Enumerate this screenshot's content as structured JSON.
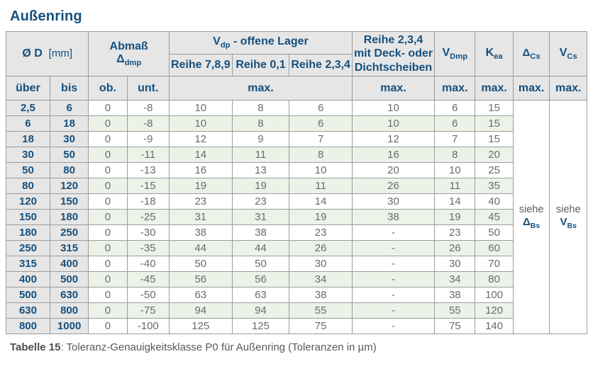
{
  "page": {
    "title": "Außenring",
    "caption": {
      "bold": "Tabelle 15",
      "rest": ": Toleranz-Genauigkeitsklasse P0 für Außenring (Toleranzen in µm)"
    }
  },
  "colors": {
    "accent_blue": "#15507E",
    "header_bg": "#e6e6e6",
    "stripe_green": "#ebf3e9",
    "border_gray": "#9c9c9c",
    "value_text": "#6b6b6b"
  },
  "table": {
    "header": {
      "diameter": {
        "main": "Ø D",
        "unit": "[mm]"
      },
      "abmass": {
        "line1": "Abmaß",
        "delta": "Δ",
        "delta_sub": "dmp"
      },
      "vdp_group": {
        "main": "V",
        "sub": "dp",
        "rest": "  -  offene Lager"
      },
      "reihe_cols": [
        "Reihe 7,8,9",
        "Reihe 0,1",
        "Reihe 2,3,4"
      ],
      "sealed": {
        "line1": "Reihe 2,3,4",
        "line2": "mit Deck- oder",
        "line3": "Dichtscheiben"
      },
      "vdmp": {
        "main": "V",
        "sub": "Dmp"
      },
      "kea": {
        "main": "K",
        "sub": "ea"
      },
      "dcs": {
        "main": "Δ",
        "sub": "Cs"
      },
      "vcs": {
        "main": "V",
        "sub": "Cs"
      },
      "sub_row": {
        "ueber": "über",
        "bis": "bis",
        "ob": "ob.",
        "unt": "unt.",
        "max": "max."
      }
    },
    "see_delta": {
      "word": "siehe",
      "main": "Δ",
      "sub": "Bs"
    },
    "see_v": {
      "word": "siehe",
      "main": "V",
      "sub": "Bs"
    },
    "rows": [
      {
        "ueber": "2,5",
        "bis": "6",
        "values": [
          "0",
          "-8",
          "10",
          "8",
          "6",
          "10",
          "6",
          "15"
        ]
      },
      {
        "ueber": "6",
        "bis": "18",
        "values": [
          "0",
          "-8",
          "10",
          "8",
          "6",
          "10",
          "6",
          "15"
        ]
      },
      {
        "ueber": "18",
        "bis": "30",
        "values": [
          "0",
          "-9",
          "12",
          "9",
          "7",
          "12",
          "7",
          "15"
        ]
      },
      {
        "ueber": "30",
        "bis": "50",
        "values": [
          "0",
          "-11",
          "14",
          "11",
          "8",
          "16",
          "8",
          "20"
        ]
      },
      {
        "ueber": "50",
        "bis": "80",
        "values": [
          "0",
          "-13",
          "16",
          "13",
          "10",
          "20",
          "10",
          "25"
        ]
      },
      {
        "ueber": "80",
        "bis": "120",
        "values": [
          "0",
          "-15",
          "19",
          "19",
          "11",
          "26",
          "11",
          "35"
        ]
      },
      {
        "ueber": "120",
        "bis": "150",
        "values": [
          "0",
          "-18",
          "23",
          "23",
          "14",
          "30",
          "14",
          "40"
        ]
      },
      {
        "ueber": "150",
        "bis": "180",
        "values": [
          "0",
          "-25",
          "31",
          "31",
          "19",
          "38",
          "19",
          "45"
        ]
      },
      {
        "ueber": "180",
        "bis": "250",
        "values": [
          "0",
          "-30",
          "38",
          "38",
          "23",
          "-",
          "23",
          "50"
        ]
      },
      {
        "ueber": "250",
        "bis": "315",
        "values": [
          "0",
          "-35",
          "44",
          "44",
          "26",
          "-",
          "26",
          "60"
        ]
      },
      {
        "ueber": "315",
        "bis": "400",
        "values": [
          "0",
          "-40",
          "50",
          "50",
          "30",
          "-",
          "30",
          "70"
        ]
      },
      {
        "ueber": "400",
        "bis": "500",
        "values": [
          "0",
          "-45",
          "56",
          "56",
          "34",
          "-",
          "34",
          "80"
        ]
      },
      {
        "ueber": "500",
        "bis": "630",
        "values": [
          "0",
          "-50",
          "63",
          "63",
          "38",
          "-",
          "38",
          "100"
        ]
      },
      {
        "ueber": "630",
        "bis": "800",
        "values": [
          "0",
          "-75",
          "94",
          "94",
          "55",
          "-",
          "55",
          "120"
        ]
      },
      {
        "ueber": "800",
        "bis": "1000",
        "values": [
          "0",
          "-100",
          "125",
          "125",
          "75",
          "-",
          "75",
          "140"
        ]
      }
    ]
  }
}
